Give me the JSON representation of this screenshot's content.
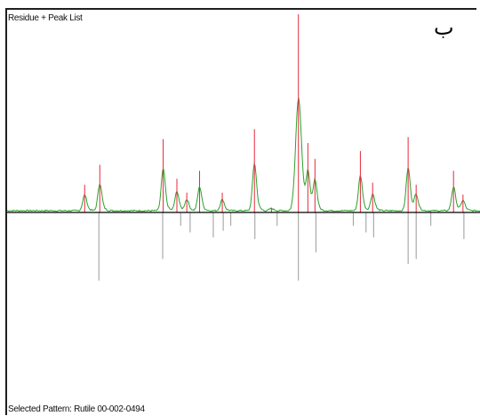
{
  "panel": {
    "title": "Residue + Peak List",
    "subtitle_letter": "ب",
    "footer": "Selected Pattern: Rutile 00-002-0494"
  },
  "colors": {
    "residue": "#2ca02c",
    "peak_marker": "#e8283c",
    "reference": "#9a9a9a",
    "baseline": "#000000",
    "frame": "#1f1f1f"
  },
  "chart_data": {
    "type": "line",
    "title": "Residue + Peak List",
    "xlabel": "",
    "ylabel": "",
    "xlim": [
      0,
      100
    ],
    "ylim_measured": [
      0,
      100
    ],
    "ylim_reference": [
      0,
      100
    ],
    "grid": false,
    "series": [],
    "measured_peaks": [
      {
        "x": 16.4,
        "h": 14
      },
      {
        "x": 19.6,
        "h": 24
      },
      {
        "x": 33.0,
        "h": 37
      },
      {
        "x": 35.9,
        "h": 17
      },
      {
        "x": 38.0,
        "h": 10
      },
      {
        "x": 40.7,
        "h": 21
      },
      {
        "x": 45.5,
        "h": 10
      },
      {
        "x": 52.3,
        "h": 42
      },
      {
        "x": 55.9,
        "h": 2
      },
      {
        "x": 61.6,
        "h": 100
      },
      {
        "x": 63.6,
        "h": 35
      },
      {
        "x": 65.1,
        "h": 27
      },
      {
        "x": 74.7,
        "h": 31
      },
      {
        "x": 77.3,
        "h": 15
      },
      {
        "x": 84.8,
        "h": 38
      },
      {
        "x": 86.5,
        "h": 14
      },
      {
        "x": 94.4,
        "h": 21
      },
      {
        "x": 96.4,
        "h": 9
      }
    ],
    "reference_peaks": [
      {
        "x": 19.4,
        "h": 41
      },
      {
        "x": 32.9,
        "h": 28
      },
      {
        "x": 36.7,
        "h": 8
      },
      {
        "x": 38.7,
        "h": 12
      },
      {
        "x": 43.6,
        "h": 15
      },
      {
        "x": 45.7,
        "h": 11
      },
      {
        "x": 47.3,
        "h": 8
      },
      {
        "x": 52.4,
        "h": 16
      },
      {
        "x": 57.1,
        "h": 8
      },
      {
        "x": 61.6,
        "h": 41
      },
      {
        "x": 65.3,
        "h": 24
      },
      {
        "x": 73.2,
        "h": 8
      },
      {
        "x": 75.9,
        "h": 12
      },
      {
        "x": 77.5,
        "h": 15
      },
      {
        "x": 84.8,
        "h": 31
      },
      {
        "x": 86.5,
        "h": 28
      },
      {
        "x": 89.6,
        "h": 8
      },
      {
        "x": 96.6,
        "h": 16
      }
    ]
  }
}
